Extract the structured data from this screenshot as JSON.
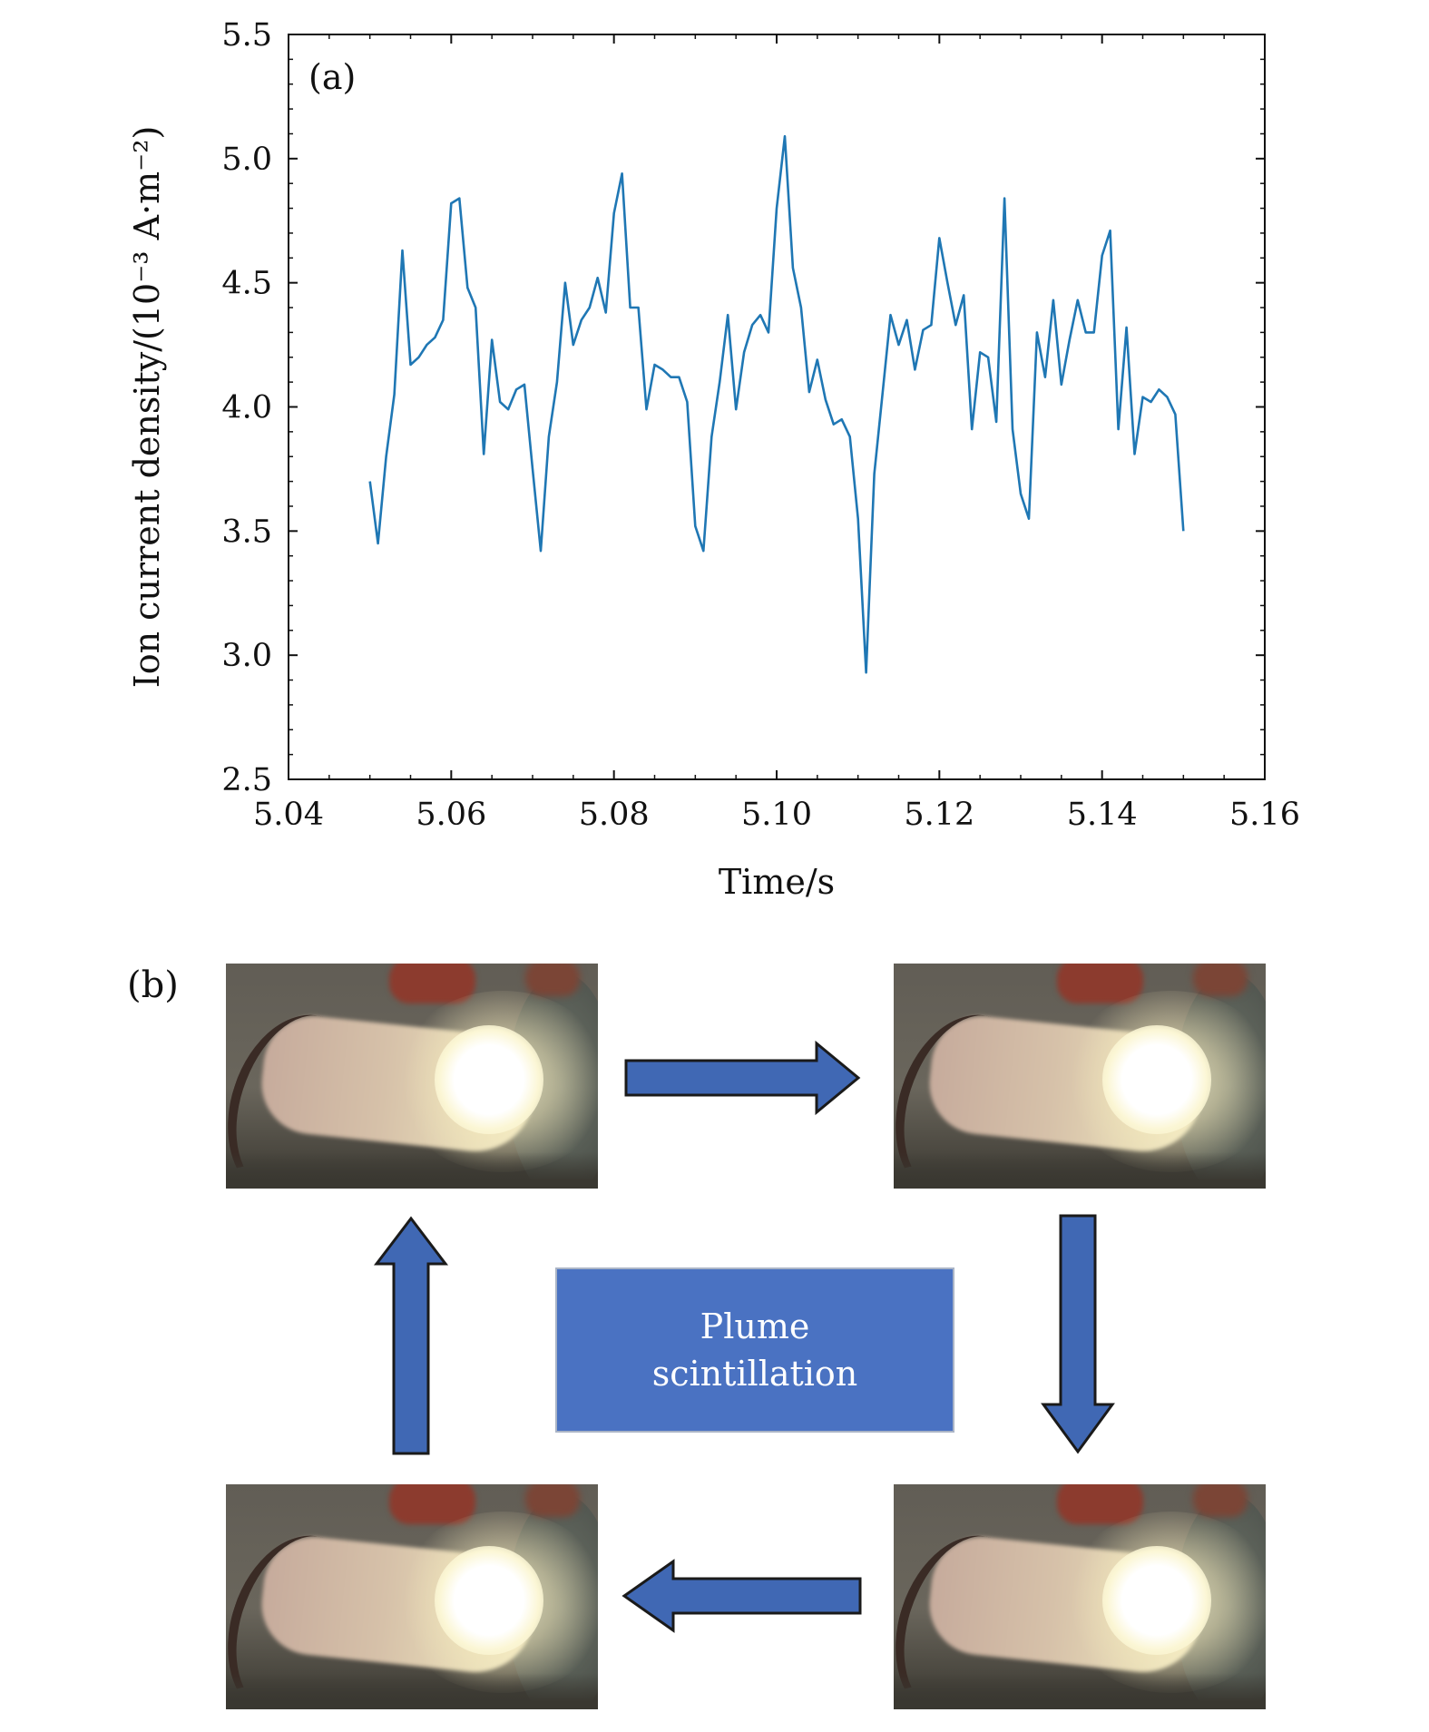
{
  "chart_data": {
    "type": "line",
    "panel_label": "(a)",
    "xlabel": "Time/s",
    "ylabel": "Ion current density/(10⁻³ A·m⁻²)",
    "xlim": [
      5.04,
      5.16
    ],
    "ylim": [
      2.5,
      5.5
    ],
    "x_ticks": [
      "5.04",
      "5.06",
      "5.08",
      "5.10",
      "5.12",
      "5.14",
      "5.16"
    ],
    "y_ticks": [
      "2.5",
      "3.0",
      "3.5",
      "4.0",
      "4.5",
      "5.0",
      "5.5"
    ],
    "grid": false,
    "line_color": "#1f77b4",
    "series": [
      {
        "name": "ion current density",
        "x": [
          5.05,
          5.051,
          5.052,
          5.053,
          5.054,
          5.055,
          5.056,
          5.057,
          5.058,
          5.059,
          5.06,
          5.061,
          5.062,
          5.063,
          5.064,
          5.065,
          5.066,
          5.067,
          5.068,
          5.069,
          5.07,
          5.071,
          5.072,
          5.073,
          5.074,
          5.075,
          5.076,
          5.077,
          5.078,
          5.079,
          5.08,
          5.081,
          5.082,
          5.083,
          5.084,
          5.085,
          5.086,
          5.087,
          5.088,
          5.089,
          5.09,
          5.091,
          5.092,
          5.093,
          5.094,
          5.095,
          5.096,
          5.097,
          5.098,
          5.099,
          5.1,
          5.101,
          5.102,
          5.103,
          5.104,
          5.105,
          5.106,
          5.107,
          5.108,
          5.109,
          5.11,
          5.111,
          5.112,
          5.113,
          5.114,
          5.115,
          5.116,
          5.117,
          5.118,
          5.119,
          5.12,
          5.121,
          5.122,
          5.123,
          5.124,
          5.125,
          5.126,
          5.127,
          5.128,
          5.129,
          5.13,
          5.131,
          5.132,
          5.133,
          5.134,
          5.135,
          5.136,
          5.137,
          5.138,
          5.139,
          5.14,
          5.141,
          5.142,
          5.143,
          5.144,
          5.145,
          5.146,
          5.147,
          5.148,
          5.149,
          5.15
        ],
        "y": [
          3.7,
          3.45,
          3.8,
          4.05,
          4.63,
          4.17,
          4.2,
          4.25,
          4.28,
          4.35,
          4.82,
          4.84,
          4.48,
          4.4,
          3.81,
          4.27,
          4.02,
          3.99,
          4.07,
          4.09,
          3.75,
          3.42,
          3.88,
          4.1,
          4.5,
          4.25,
          4.35,
          4.4,
          4.52,
          4.38,
          4.78,
          4.94,
          4.4,
          4.4,
          3.99,
          4.17,
          4.15,
          4.12,
          4.12,
          4.02,
          3.52,
          3.42,
          3.88,
          4.1,
          4.37,
          3.99,
          4.22,
          4.33,
          4.37,
          4.3,
          4.8,
          5.09,
          4.56,
          4.4,
          4.06,
          4.19,
          4.03,
          3.93,
          3.95,
          3.88,
          3.55,
          2.93,
          3.73,
          4.05,
          4.37,
          4.25,
          4.35,
          4.15,
          4.31,
          4.33,
          4.68,
          4.5,
          4.33,
          4.45,
          3.91,
          4.22,
          4.2,
          3.94,
          4.84,
          3.91,
          3.65,
          3.55,
          4.3,
          4.12,
          4.43,
          4.09,
          4.27,
          4.43,
          4.3,
          4.3,
          4.61,
          4.71,
          3.91,
          4.32,
          3.81,
          4.04,
          4.02,
          4.07,
          4.04,
          3.97,
          3.5
        ]
      }
    ]
  },
  "panel_b": {
    "label": "(b)",
    "center_box": {
      "line1": "Plume",
      "line2": "scintillation",
      "fill": "#4a72c2"
    },
    "arrow_color": "#4068b4",
    "photos": [
      "plume-photo-top-left",
      "plume-photo-top-right",
      "plume-photo-bottom-right",
      "plume-photo-bottom-left"
    ]
  }
}
